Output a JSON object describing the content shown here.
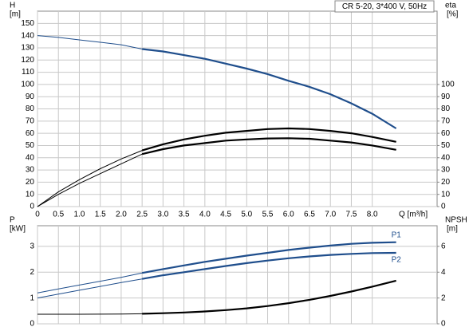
{
  "chart_data": [
    {
      "type": "line",
      "title": "CR 5-20, 3*400 V, 50Hz",
      "ylabel": "H",
      "yunit": "[m]",
      "y2label": "eta",
      "y2unit": "[%]",
      "xlabel": "Q [m³/h]",
      "x": [
        0,
        0.5,
        1,
        1.5,
        2,
        2.5,
        3,
        3.5,
        4,
        4.5,
        5,
        5.5,
        6,
        6.5,
        7,
        7.5,
        8,
        8.57
      ],
      "xlim": [
        0,
        9.55
      ],
      "xticks": [
        0,
        0.5,
        {
          "value": 1,
          "label": "1.0"
        },
        1.5,
        {
          "value": 2,
          "label": "2.0"
        },
        2.5,
        {
          "value": 3,
          "label": "3.0"
        },
        3.5,
        {
          "value": 4,
          "label": "4.0"
        },
        4.5,
        {
          "value": 5,
          "label": "5.0"
        },
        5.5,
        {
          "value": 6,
          "label": "6.0"
        },
        6.5,
        {
          "value": 7,
          "label": "7.0"
        },
        7.5,
        {
          "value": 8,
          "label": "8.0"
        }
      ],
      "xtick_labels": true,
      "ylim": [
        0,
        160
      ],
      "yticks": [
        0,
        10,
        20,
        30,
        40,
        50,
        60,
        70,
        80,
        90,
        100,
        110,
        120,
        130,
        140,
        150
      ],
      "y2lim": [
        0,
        160
      ],
      "y2ticks": [
        0,
        10,
        20,
        30,
        40,
        50,
        60,
        70,
        80,
        90,
        100
      ],
      "grid": true,
      "highlight_from": 2.5,
      "series": [
        {
          "color": "#1f4e8c",
          "values": [
            140,
            138.5,
            136.5,
            134.5,
            132.5,
            129,
            127,
            124,
            121,
            117,
            113,
            108.5,
            103,
            98,
            92,
            84.5,
            76,
            64
          ]
        },
        {
          "color": "#000000",
          "axis": "y2",
          "values": [
            0,
            12,
            22,
            31,
            39,
            46,
            51,
            55,
            58,
            60.5,
            62,
            63.5,
            64,
            63.5,
            62,
            60,
            57,
            53
          ]
        },
        {
          "color": "#000000",
          "axis": "y2",
          "values": [
            0,
            10,
            19,
            27,
            35,
            43,
            47,
            50,
            52,
            54,
            55,
            55.8,
            56,
            55.5,
            54,
            52.5,
            50,
            46.5
          ]
        }
      ]
    },
    {
      "type": "line",
      "ylabel": "P",
      "yunit": "[kW]",
      "y2label": "NPSH",
      "y2unit": "[m]",
      "x": [
        0,
        0.5,
        1,
        1.5,
        2,
        2.5,
        3,
        3.5,
        4,
        4.5,
        5,
        5.5,
        6,
        6.5,
        7,
        7.5,
        8,
        8.57
      ],
      "xlim": [
        0,
        9.55
      ],
      "xticks": [
        0,
        0.5,
        1,
        1.5,
        2,
        2.5,
        3,
        3.5,
        4,
        4.5,
        5,
        5.5,
        6,
        6.5,
        7,
        7.5,
        8
      ],
      "xtick_labels": false,
      "ylim": [
        0,
        3.8
      ],
      "yticks": [
        0,
        1,
        2,
        3
      ],
      "y2lim": [
        0,
        7.6
      ],
      "y2ticks": [
        0,
        2,
        4,
        6
      ],
      "grid": true,
      "highlight_from": 2.5,
      "series": [
        {
          "name": "P1",
          "color": "#1f4e8c",
          "values": [
            1.2,
            1.35,
            1.5,
            1.65,
            1.8,
            1.97,
            2.12,
            2.26,
            2.4,
            2.52,
            2.64,
            2.75,
            2.86,
            2.95,
            3.03,
            3.1,
            3.14,
            3.16
          ]
        },
        {
          "name": "P2",
          "color": "#1f4e8c",
          "values": [
            1.0,
            1.15,
            1.3,
            1.45,
            1.6,
            1.74,
            1.88,
            2.0,
            2.12,
            2.24,
            2.35,
            2.45,
            2.54,
            2.61,
            2.67,
            2.71,
            2.74,
            2.75
          ]
        },
        {
          "color": "#000000",
          "axis": "y2",
          "values": [
            0.74,
            0.74,
            0.74,
            0.75,
            0.76,
            0.78,
            0.82,
            0.88,
            0.96,
            1.06,
            1.2,
            1.38,
            1.6,
            1.86,
            2.16,
            2.5,
            2.88,
            3.34
          ]
        }
      ]
    }
  ]
}
